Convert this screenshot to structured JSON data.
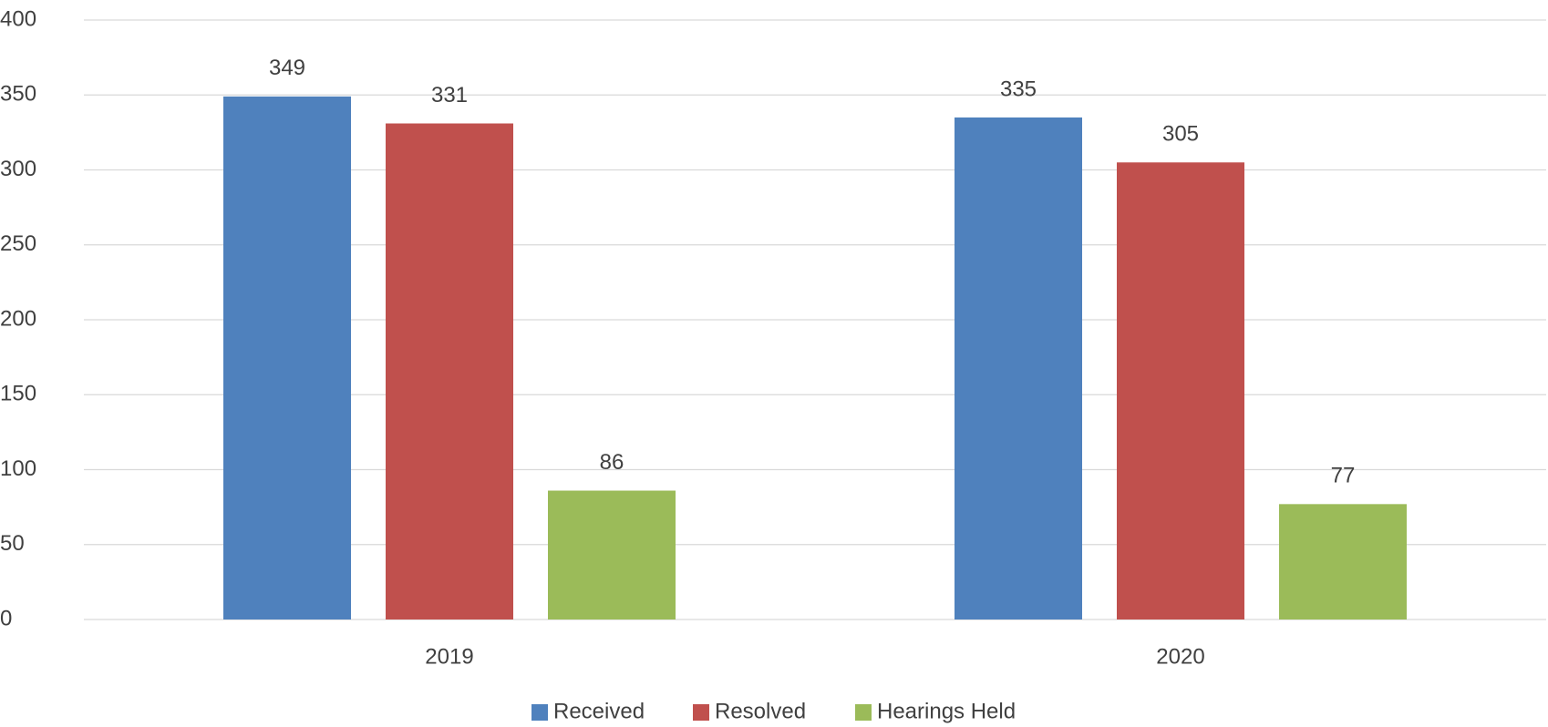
{
  "chart_data": {
    "type": "bar",
    "categories": [
      "2019",
      "2020"
    ],
    "series": [
      {
        "name": "Received",
        "color": "#4f81bd",
        "values": [
          349,
          335
        ]
      },
      {
        "name": "Resolved",
        "color": "#c0504d",
        "values": [
          331,
          305
        ]
      },
      {
        "name": "Hearings Held",
        "color": "#9bbb59",
        "values": [
          86,
          77
        ]
      }
    ],
    "ylim": [
      0,
      400
    ],
    "yticks": [
      0,
      50,
      100,
      150,
      200,
      250,
      300,
      350,
      400
    ],
    "grid": true,
    "legend": "bottom"
  }
}
